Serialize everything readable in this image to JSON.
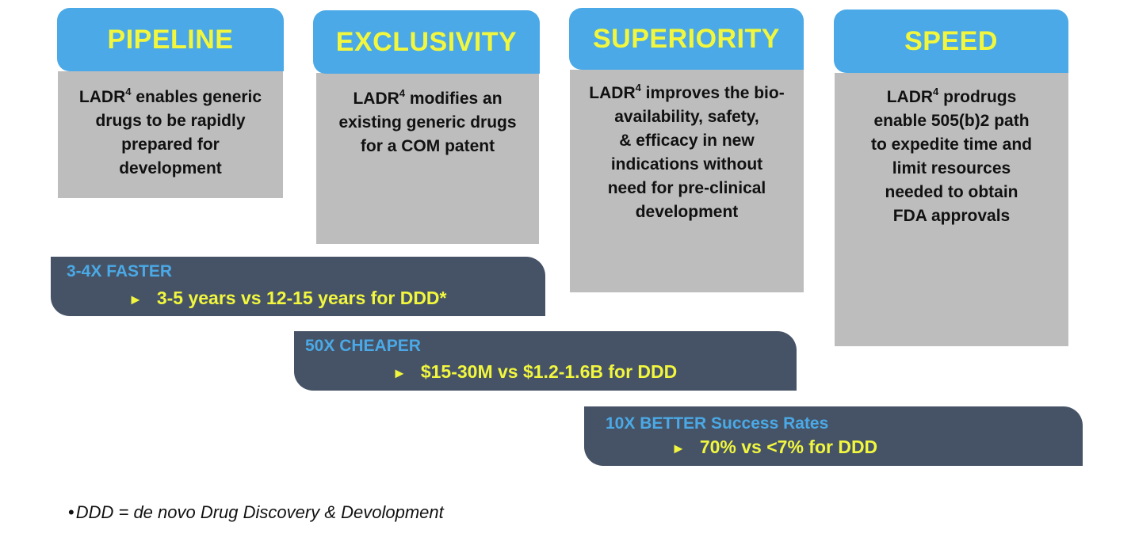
{
  "pillars": [
    {
      "title": "PIPELINE",
      "prefix": "LADR",
      "sup": "4",
      "lines": [
        " enables generic",
        "drugs to be rapidly",
        "prepared for",
        "development"
      ]
    },
    {
      "title": "EXCLUSIVITY",
      "prefix": "LADR",
      "sup": "4",
      "lines": [
        " modifies an",
        "existing generic drugs",
        "for a COM patent"
      ]
    },
    {
      "title": "SUPERIORITY",
      "prefix": "LADR",
      "sup": "4",
      "lines": [
        " improves the bio-",
        "availability, safety,",
        "& efficacy in new",
        "indications without",
        "need for pre-clinical",
        "development"
      ]
    },
    {
      "title": "SPEED",
      "prefix": "LADR",
      "sup": "4",
      "lines": [
        " prodrugs",
        "enable 505(b)2 path",
        "to expedite time and",
        "limit resources",
        "needed to obtain",
        "FDA approvals"
      ]
    }
  ],
  "bars": [
    {
      "head": "3-4X FASTER",
      "arrow": "►",
      "detail": "3-5 years vs 12-15 years for DDD*"
    },
    {
      "head": "50X CHEAPER",
      "arrow": "►",
      "detail": "$15-30M vs $1.2-1.6B for DDD"
    },
    {
      "head": "10X BETTER Success Rates",
      "arrow": "►",
      "detail": "70% vs <7% for DDD"
    }
  ],
  "footnote": {
    "bullet": "•",
    "text": "DDD = de novo Drug Discovery & Devolopment"
  },
  "colors": {
    "tab": "#4aa9e6",
    "tab_text": "#f2f73e",
    "card": "#bdbdbd",
    "bar": "#465366",
    "bar_head": "#4aa9e6",
    "bar_detail": "#f2f73e"
  }
}
